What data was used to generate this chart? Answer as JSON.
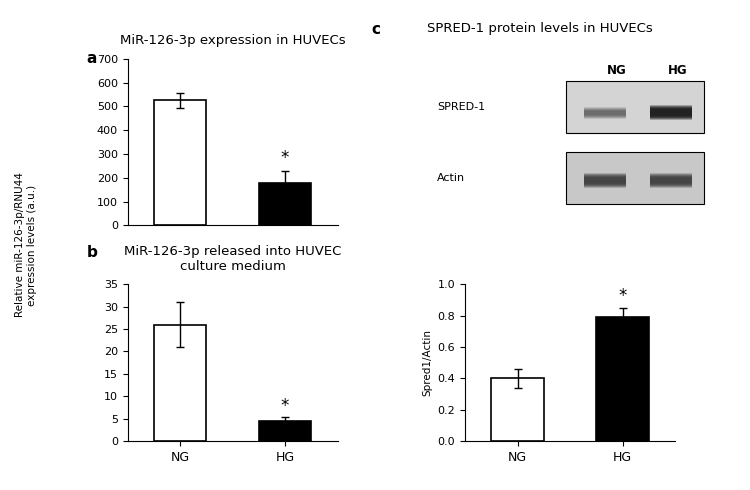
{
  "panel_a": {
    "title": "MiR-126-3p expression in HUVECs",
    "label": "a",
    "categories": [
      "NG",
      "HG"
    ],
    "values": [
      525,
      180
    ],
    "errors": [
      30,
      50
    ],
    "colors": [
      "white",
      "black"
    ],
    "ylim": [
      0,
      700
    ],
    "yticks": [
      0,
      100,
      200,
      300,
      400,
      500,
      600,
      700
    ],
    "star_on": "HG",
    "ylabel": "Relative miR-126-3p/RNU44\nexpression levels (a.u.)"
  },
  "panel_b": {
    "title": "MiR-126-3p released into HUVEC\nculture medium",
    "label": "b",
    "categories": [
      "NG",
      "HG"
    ],
    "values": [
      26,
      4.5
    ],
    "errors": [
      5,
      0.8
    ],
    "colors": [
      "white",
      "black"
    ],
    "ylim": [
      0,
      35
    ],
    "yticks": [
      0,
      5,
      10,
      15,
      20,
      25,
      30,
      35
    ],
    "star_on": "HG"
  },
  "panel_c": {
    "title": "SPRED-1 protein levels in HUVECs",
    "label": "c",
    "categories": [
      "NG",
      "HG"
    ],
    "values": [
      0.4,
      0.79
    ],
    "errors": [
      0.06,
      0.06
    ],
    "colors": [
      "white",
      "black"
    ],
    "ylim": [
      0,
      1
    ],
    "yticks": [
      0,
      0.2,
      0.4,
      0.6,
      0.8,
      1
    ],
    "ylabel": "Spred1/Actin",
    "star_on": "HG",
    "blot_labels": [
      "SPRED-1",
      "Actin"
    ],
    "blot_ng_hg_label": [
      "NG",
      "HG"
    ]
  },
  "bar_edgecolor": "black",
  "bar_linewidth": 1.2,
  "errorbar_color": "black",
  "errorbar_capsize": 3,
  "errorbar_linewidth": 1.0,
  "star_fontsize": 12,
  "title_fontsize": 9.5,
  "label_fontsize": 11,
  "tick_fontsize": 8,
  "ylabel_fontsize": 7.5,
  "background_color": "white"
}
